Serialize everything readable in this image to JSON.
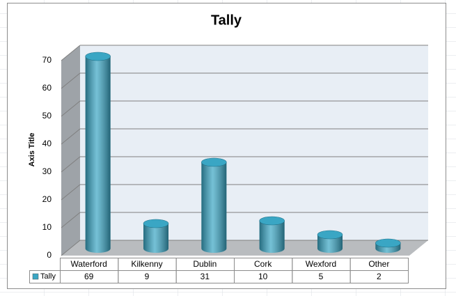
{
  "chart_data": {
    "type": "bar",
    "title": "Tally",
    "y_label": "Axis Title",
    "categories": [
      "Waterford",
      "Kilkenny",
      "Dublin",
      "Cork",
      "Wexford",
      "Other"
    ],
    "series": [
      {
        "name": "Tally",
        "color": "#3aa6c4",
        "values": [
          69,
          9,
          31,
          10,
          5,
          2
        ]
      }
    ],
    "ylim": [
      0,
      70
    ],
    "yticks": [
      0,
      10,
      20,
      30,
      40,
      50,
      60,
      70
    ],
    "grid": true
  }
}
